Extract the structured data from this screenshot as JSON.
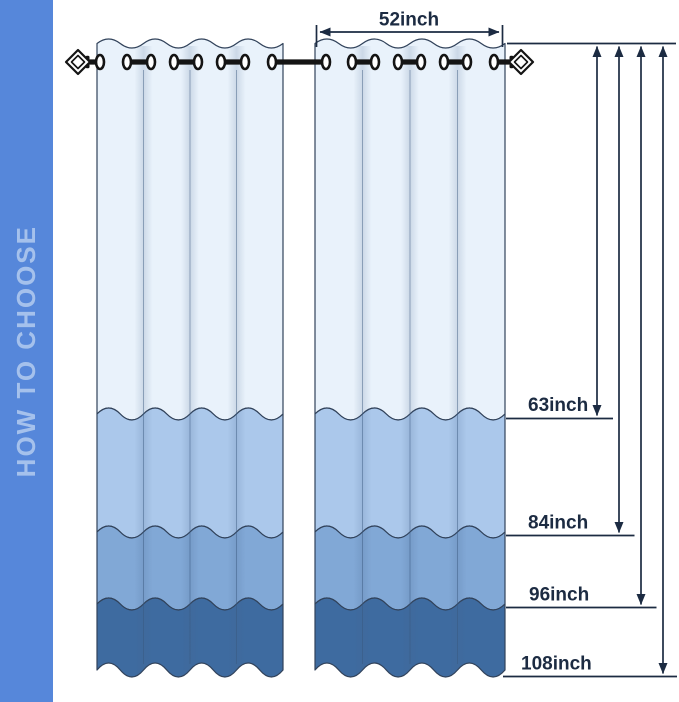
{
  "sidebar": {
    "label": "HOW TO CHOOSE"
  },
  "diagram": {
    "width_label": "52inch",
    "length_labels": [
      "63inch",
      "84inch",
      "96inch",
      "108inch"
    ]
  },
  "colors": {
    "sidebar_bg": "#5687DA",
    "sidebar_text": "#A5C1EC",
    "curtain_band_top": "#E9F2FB",
    "curtain_band_2": "#ABC8EB",
    "curtain_band_3": "#81A8D6",
    "curtain_band_4": "#3E6BA0",
    "band_outline": "#31425A",
    "dimension_ink": "#1C2B42",
    "rod_black": "#141414"
  }
}
